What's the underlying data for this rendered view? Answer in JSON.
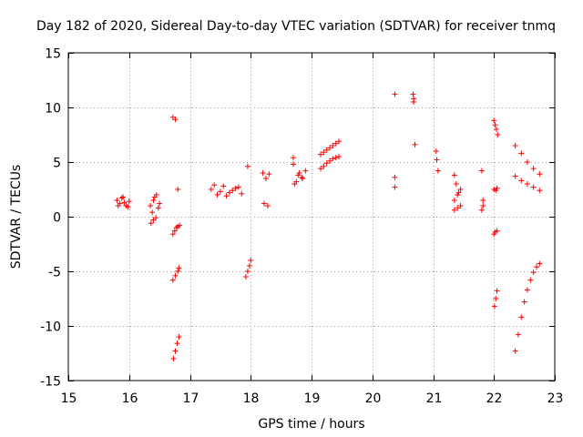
{
  "chart_data": {
    "type": "scatter",
    "title": "Day 182 of 2020, Sidereal Day-to-day VTEC variation (SDTVAR) for receiver tnmq",
    "xlabel": "GPS time / hours",
    "ylabel": "SDTVAR / TECUs",
    "xlim": [
      15,
      23
    ],
    "ylim": [
      -15,
      15
    ],
    "xticks": [
      15,
      16,
      17,
      18,
      19,
      20,
      21,
      22,
      23
    ],
    "yticks": [
      -15,
      -10,
      -5,
      0,
      5,
      10,
      15
    ],
    "xtick_labels": [
      "15",
      "16",
      "17",
      "18",
      "19",
      "20",
      "21",
      "22",
      "23"
    ],
    "ytick_labels": [
      "-15",
      "-10",
      "-5",
      "0",
      "5",
      "10",
      "15"
    ],
    "grid": true,
    "marker": "+",
    "marker_color": "#ff0000",
    "series": [
      {
        "name": "SDTVAR",
        "x": [
          15.8,
          15.85,
          15.9,
          15.95,
          16.0,
          15.82,
          15.88,
          15.92,
          15.98,
          16.35,
          16.4,
          16.45,
          16.5,
          16.38,
          16.42,
          16.48,
          16.36,
          16.4,
          16.44,
          16.72,
          16.76,
          16.8,
          16.72,
          16.75,
          16.78,
          16.8,
          16.83,
          16.72,
          16.76,
          16.8,
          16.82,
          16.73,
          16.76,
          16.79,
          16.82,
          17.35,
          17.45,
          17.55,
          17.65,
          17.75,
          17.85,
          17.4,
          17.6,
          17.8,
          17.5,
          17.7,
          17.95,
          17.92,
          17.95,
          17.98,
          18.0,
          18.2,
          18.25,
          18.3,
          18.22,
          18.28,
          18.7,
          18.75,
          18.8,
          18.85,
          18.9,
          18.72,
          18.78,
          18.84,
          18.7,
          19.15,
          19.2,
          19.25,
          19.3,
          19.35,
          19.4,
          19.45,
          19.15,
          19.2,
          19.25,
          19.3,
          19.35,
          19.4,
          19.45,
          20.37,
          20.37,
          20.37,
          20.67,
          20.68,
          20.68,
          20.7,
          21.05,
          21.06,
          21.08,
          21.35,
          21.38,
          21.4,
          21.45,
          21.35,
          21.4,
          21.45,
          21.35,
          21.42,
          21.8,
          21.82,
          21.8,
          21.82,
          22.0,
          22.02,
          22.04,
          22.06,
          22.0,
          22.03,
          22.05,
          22.0,
          22.02,
          22.05,
          22.01,
          22.03,
          22.05,
          22.35,
          22.45,
          22.55,
          22.65,
          22.75,
          22.35,
          22.45,
          22.55,
          22.65,
          22.75,
          22.35,
          22.4,
          22.45,
          22.5,
          22.55,
          22.6,
          22.65,
          22.7,
          22.75
        ],
        "y": [
          1.5,
          1.2,
          1.8,
          1.0,
          1.4,
          1.0,
          1.7,
          1.3,
          0.9,
          1.0,
          1.5,
          2.0,
          1.2,
          0.4,
          1.8,
          0.8,
          -0.6,
          -0.3,
          -0.1,
          9.1,
          8.9,
          2.5,
          -1.6,
          -1.3,
          -1.0,
          -0.9,
          -0.8,
          -5.8,
          -5.4,
          -5.0,
          -4.7,
          -13.0,
          -12.3,
          -11.6,
          -11.0,
          2.5,
          2.0,
          2.8,
          2.2,
          2.6,
          2.1,
          2.9,
          1.9,
          2.7,
          2.3,
          2.4,
          4.6,
          -5.5,
          -5.0,
          -4.5,
          -4.0,
          4.0,
          3.5,
          3.9,
          1.2,
          1.0,
          5.4,
          3.2,
          4.0,
          3.5,
          4.2,
          3.0,
          3.8,
          3.6,
          4.8,
          5.7,
          5.9,
          6.1,
          6.3,
          6.5,
          6.7,
          6.9,
          4.4,
          4.6,
          4.9,
          5.1,
          5.3,
          5.4,
          5.5,
          11.2,
          3.6,
          2.7,
          11.2,
          10.8,
          10.5,
          6.6,
          6.0,
          5.2,
          4.2,
          3.8,
          3.0,
          2.0,
          1.0,
          1.5,
          0.8,
          2.5,
          0.6,
          2.2,
          4.2,
          1.0,
          0.6,
          1.5,
          8.8,
          8.4,
          8.0,
          7.5,
          2.5,
          2.4,
          2.6,
          -1.6,
          -1.4,
          -1.3,
          -8.2,
          -7.5,
          -6.8,
          6.5,
          5.8,
          5.0,
          4.4,
          3.9,
          3.7,
          3.3,
          3.0,
          2.7,
          2.4,
          -12.3,
          -10.8,
          -9.2,
          -7.8,
          -6.7,
          -5.8,
          -5.1,
          -4.6,
          -4.3
        ]
      }
    ]
  }
}
